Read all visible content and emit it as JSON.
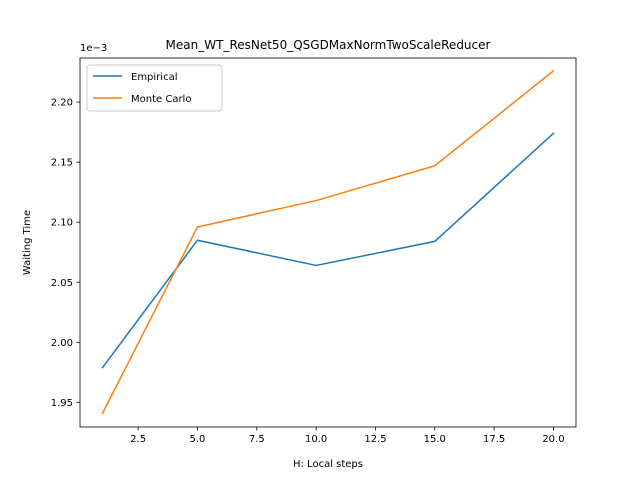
{
  "chart_data": {
    "type": "line",
    "title": "Mean_WT_ResNet50_QSGDMaxNormTwoScaleReducer",
    "xlabel": "H: Local steps",
    "ylabel": "Waiting Time",
    "y_offset_text": "1e−3",
    "x": [
      1,
      5,
      10,
      15,
      20
    ],
    "xlim": [
      0.05,
      20.95
    ],
    "ylim": [
      1.9295,
      2.2367
    ],
    "x_ticks": [
      2.5,
      5.0,
      7.5,
      10.0,
      12.5,
      15.0,
      17.5,
      20.0
    ],
    "x_tick_labels": [
      "2.5",
      "5.0",
      "7.5",
      "10.0",
      "12.5",
      "15.0",
      "17.5",
      "20.0"
    ],
    "y_ticks": [
      1.95,
      2.0,
      2.05,
      2.1,
      2.15,
      2.2
    ],
    "y_tick_labels": [
      "1.95",
      "2.00",
      "2.05",
      "2.10",
      "2.15",
      "2.20"
    ],
    "grid": false,
    "legend_position": "upper left",
    "series": [
      {
        "name": "Empirical",
        "color": "#1f77b4",
        "values": [
          1.979,
          2.085,
          2.064,
          2.084,
          2.174
        ]
      },
      {
        "name": "Monte Carlo",
        "color": "#ff7f0e",
        "values": [
          1.941,
          2.096,
          2.118,
          2.147,
          2.226
        ]
      }
    ]
  }
}
